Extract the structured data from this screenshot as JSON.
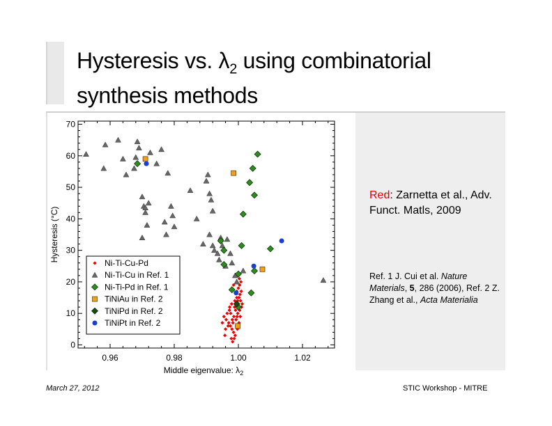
{
  "slide": {
    "title_part1": "Hysteresis vs. λ",
    "title_sub": "2",
    "title_part2": " using combinatorial synthesis methods",
    "note_red": "Red",
    "note_rest": ": Zarnetta et al., Adv. Funct. Matls, 2009",
    "ref1_pre": "Ref. 1 J. Cui et al. ",
    "ref1_journal": "Nature Materials",
    "ref1_mid": ", ",
    "ref1_vol": "5",
    "ref1_post": ", 286 (2006),",
    "ref2_pre": "Ref. 2 Z. Zhang et al., ",
    "ref2_journal": "Acta Materialia",
    "footer_date": "March 27, 2012",
    "footer_right": "STIC Workshop - MITRE"
  },
  "chart_data": {
    "type": "scatter",
    "title": "",
    "xlabel": "Middle eigenvalue: λ",
    "xlabel_sub": "2",
    "ylabel": "Hysteresis (°C)",
    "xlim": [
      0.95,
      1.03
    ],
    "ylim": [
      -1,
      71
    ],
    "xticks": [
      0.96,
      0.98,
      1.0,
      1.02
    ],
    "xtick_labels": [
      "0.96",
      "0.98",
      "1.00",
      "1.02"
    ],
    "yticks": [
      0,
      10,
      20,
      30,
      40,
      50,
      60,
      70
    ],
    "ytick_labels": [
      "0",
      "10",
      "20",
      "30",
      "40",
      "50",
      "60",
      "70"
    ],
    "legend_position": "bottom-left",
    "grid": false,
    "series": [
      {
        "name": "Ni-Ti-Cu-Pd",
        "marker": "diamond-small",
        "color": "#ee0000",
        "points": [
          [
            0.9955,
            9
          ],
          [
            0.9962,
            8
          ],
          [
            0.997,
            7
          ],
          [
            0.9975,
            6
          ],
          [
            0.998,
            5
          ],
          [
            0.9985,
            4
          ],
          [
            0.999,
            3
          ],
          [
            0.9978,
            2
          ],
          [
            0.9982,
            1
          ],
          [
            0.9965,
            10
          ],
          [
            0.9972,
            11
          ],
          [
            0.9988,
            12
          ],
          [
            0.9992,
            13
          ],
          [
            0.9998,
            14
          ],
          [
            1.0002,
            15
          ],
          [
            1.0005,
            16
          ],
          [
            0.9995,
            17
          ],
          [
            1.0,
            18
          ],
          [
            0.9985,
            19
          ],
          [
            1.0008,
            20
          ],
          [
            1.0003,
            21
          ],
          [
            0.999,
            22
          ],
          [
            0.9998,
            10
          ],
          [
            1.0004,
            11
          ],
          [
            1.001,
            12
          ],
          [
            0.9993,
            8
          ],
          [
            0.9986,
            9
          ],
          [
            0.9976,
            10
          ],
          [
            0.9968,
            6
          ],
          [
            0.9983,
            7
          ],
          [
            0.9997,
            5
          ],
          [
            1.0006,
            9
          ],
          [
            1.0012,
            13
          ],
          [
            1.0001,
            12
          ],
          [
            0.9989,
            14
          ],
          [
            0.9995,
            15
          ],
          [
            1.0007,
            14
          ],
          [
            0.9979,
            13
          ],
          [
            0.9973,
            12
          ],
          [
            0.996,
            5
          ],
          [
            0.995,
            7
          ],
          [
            0.9958,
            3
          ],
          [
            0.9994,
            6
          ],
          [
            1.0002,
            7
          ],
          [
            1.0009,
            17
          ],
          [
            1.0004,
            19
          ],
          [
            0.9991,
            11
          ],
          [
            0.9981,
            8
          ],
          [
            0.9987,
            2
          ],
          [
            0.9996,
            9
          ]
        ]
      },
      {
        "name": "Ni-Ti-Cu in Ref. 1",
        "marker": "triangle",
        "color": "#666666",
        "points": [
          [
            0.9525,
            60.5
          ],
          [
            0.958,
            56
          ],
          [
            0.9585,
            63.5
          ],
          [
            0.9625,
            65
          ],
          [
            0.964,
            59
          ],
          [
            0.965,
            54
          ],
          [
            0.9675,
            56
          ],
          [
            0.968,
            59.5
          ],
          [
            0.9685,
            64.5
          ],
          [
            0.969,
            62.5
          ],
          [
            0.97,
            47
          ],
          [
            0.9705,
            44
          ],
          [
            0.971,
            43.5
          ],
          [
            0.9715,
            38
          ],
          [
            0.972,
            45
          ],
          [
            0.971,
            42
          ],
          [
            0.97,
            34
          ],
          [
            0.9725,
            61
          ],
          [
            0.9745,
            57.5
          ],
          [
            0.976,
            62
          ],
          [
            0.977,
            39
          ],
          [
            0.9775,
            35
          ],
          [
            0.978,
            54.5
          ],
          [
            0.979,
            44
          ],
          [
            0.9795,
            41
          ],
          [
            0.98,
            37.5
          ],
          [
            0.985,
            49
          ],
          [
            0.99,
            52
          ],
          [
            0.9905,
            54
          ],
          [
            0.991,
            48
          ],
          [
            0.9915,
            46
          ],
          [
            0.992,
            42.5
          ],
          [
            0.991,
            35
          ],
          [
            0.992,
            31.5
          ],
          [
            0.9925,
            30
          ],
          [
            0.989,
            32
          ],
          [
            0.9935,
            29
          ],
          [
            0.994,
            27
          ],
          [
            0.9945,
            34
          ],
          [
            0.995,
            31.5
          ],
          [
            0.9965,
            33.5
          ],
          [
            0.9975,
            29
          ],
          [
            0.998,
            26
          ],
          [
            0.999,
            22
          ],
          [
            0.9995,
            20
          ],
          [
            1.0015,
            23.5
          ],
          [
            0.996,
            25
          ],
          [
            1.0265,
            20.5
          ],
          [
            0.987,
            40
          ]
        ]
      },
      {
        "name": "Ni-Ti-Pd in Ref. 1",
        "marker": "diamond",
        "color": "#2e8b1e",
        "points": [
          [
            0.9685,
            57.5
          ],
          [
            0.9945,
            33
          ],
          [
            0.9955,
            30
          ],
          [
            0.9955,
            25.5
          ],
          [
            0.998,
            17.5
          ],
          [
            1.0,
            22.5
          ],
          [
            1.001,
            31.5
          ],
          [
            1.0015,
            41.5
          ],
          [
            1.0035,
            51.5
          ],
          [
            1.0045,
            56
          ],
          [
            1.005,
            47.5
          ],
          [
            1.006,
            60.5
          ],
          [
            1.005,
            23.5
          ],
          [
            1.01,
            30.5
          ],
          [
            1.004,
            16.5
          ],
          [
            1.0,
            12
          ]
        ]
      },
      {
        "name": "TiNiAu in Ref. 2",
        "marker": "square",
        "color": "#f0a020",
        "points": [
          [
            0.971,
            59
          ],
          [
            0.9985,
            54.5
          ],
          [
            1.0075,
            24
          ],
          [
            0.9998,
            6
          ]
        ]
      },
      {
        "name": "TiNiPd in Ref. 2",
        "marker": "diamond-dark",
        "color": "#1a4a10",
        "points": [
          [
            0.9995,
            13
          ]
        ]
      },
      {
        "name": "TiNiPt in Ref. 2",
        "marker": "circle",
        "color": "#1a3fd0",
        "points": [
          [
            0.9713,
            57.5
          ],
          [
            1.0048,
            25
          ],
          [
            1.0135,
            33
          ],
          [
            0.9993,
            16.5
          ]
        ]
      }
    ]
  }
}
